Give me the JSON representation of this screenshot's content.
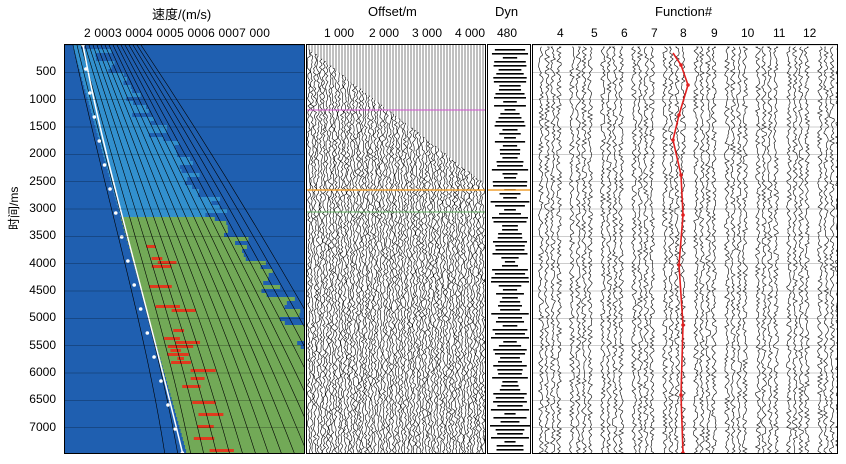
{
  "panels": {
    "velocity": {
      "title": "速度/(m/s)",
      "ticks": "2 0003 0004 0005 0006 0007 000"
    },
    "offset": {
      "title": "Offset/m",
      "ticks": [
        "1 000",
        "2 000",
        "3 000",
        "4 000"
      ]
    },
    "dyn": {
      "title": "Dyn",
      "tick": "480"
    },
    "function": {
      "title": "Function#",
      "ticks": [
        "4",
        "5",
        "6",
        "7",
        "8",
        "9",
        "10",
        "11",
        "12"
      ]
    }
  },
  "y_axis": {
    "title": "时间/ms",
    "ticks": [
      "500",
      "1000",
      "1500",
      "2000",
      "2500",
      "3000",
      "3500",
      "4000",
      "4500",
      "5000",
      "5500",
      "6000",
      "6500",
      "7000"
    ]
  },
  "colors": {
    "velocity_bg": "#1f5fb0",
    "velocity_hot": "#e03a1e",
    "velocity_warm": "#8fc23a",
    "pick_line": "#ffffff",
    "function_pick": "#e02020"
  }
}
